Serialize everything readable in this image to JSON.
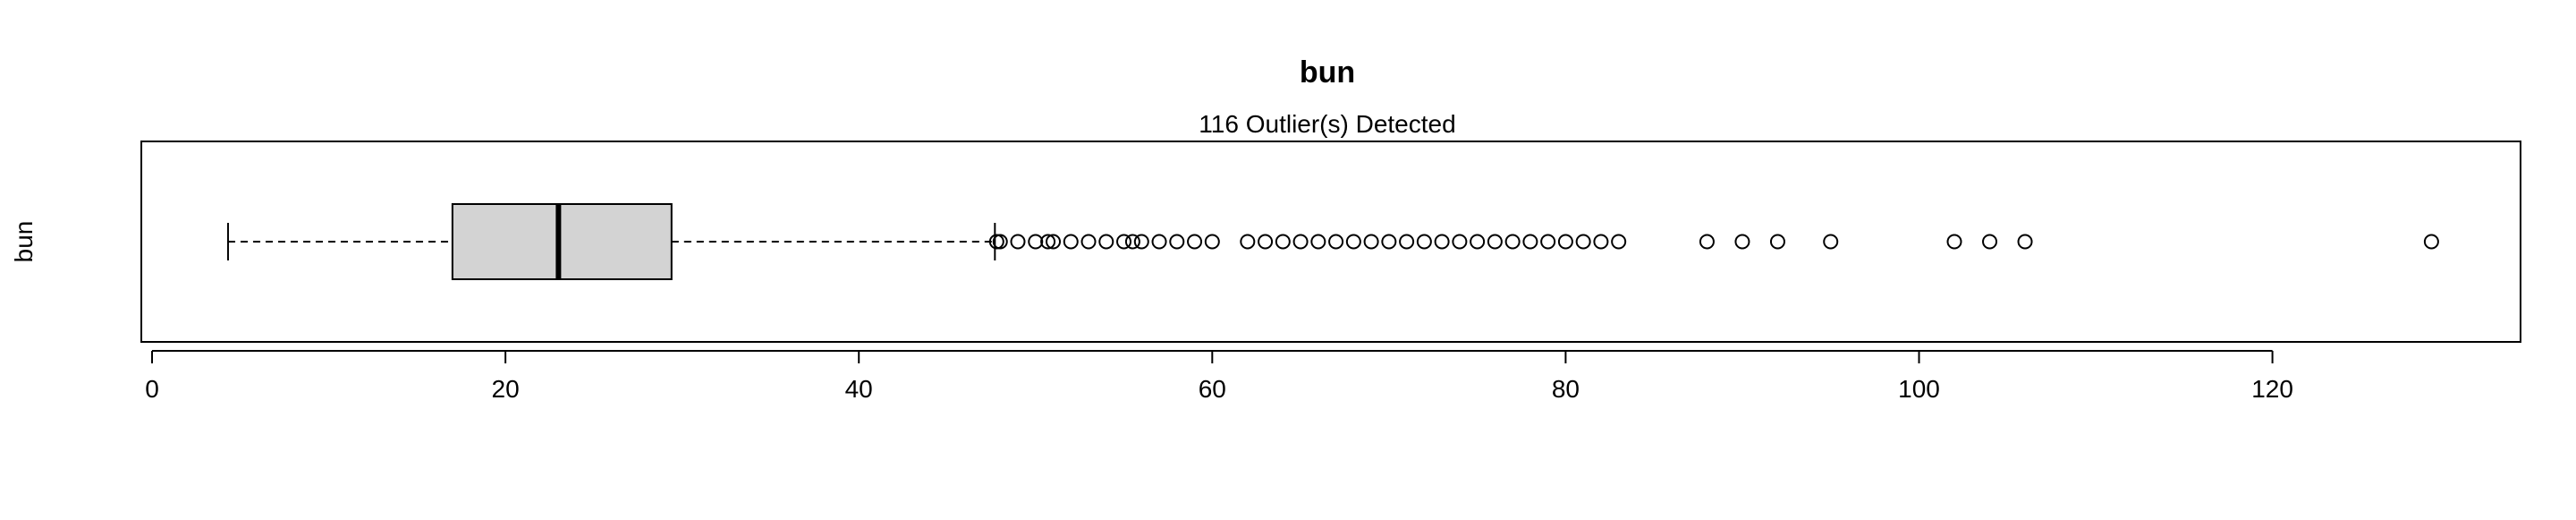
{
  "chart_data": {
    "type": "boxplot",
    "orientation": "horizontal",
    "title": "bun",
    "subtitle": "116 Outlier(s) Detected",
    "ylabel": "bun",
    "xlabel": "",
    "xlim": [
      0,
      134
    ],
    "xticks": [
      0,
      20,
      40,
      60,
      80,
      100,
      120
    ],
    "grid": false,
    "box": {
      "whisker_low": 4.3,
      "q1": 17,
      "median": 23,
      "q3": 29.4,
      "whisker_high": 47.7
    },
    "outliers": [
      47.8,
      48,
      49,
      50,
      50.7,
      51,
      52,
      53,
      54,
      55,
      55.5,
      56,
      57,
      58,
      59,
      60,
      62,
      63,
      64,
      65,
      66,
      67,
      68,
      69,
      70,
      71,
      72,
      73,
      74,
      75,
      76,
      77,
      78,
      79,
      80,
      81,
      82,
      83,
      88,
      90,
      92,
      95,
      102,
      104,
      106,
      129
    ],
    "colors": {
      "box_fill": "#d3d3d3",
      "stroke": "#000000"
    }
  }
}
